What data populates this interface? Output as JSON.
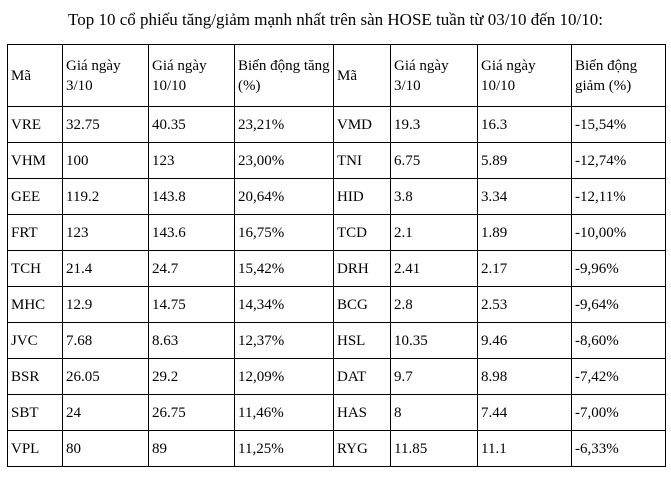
{
  "title": "Top 10 cổ phiếu tăng/giảm mạnh nhất trên sàn HOSE tuần từ 03/10 đến 10/10:",
  "table": {
    "headers": [
      "Mã",
      "Giá ngày 3/10",
      "Giá ngày 10/10",
      "Biến động tăng (%)",
      "Mã",
      "Giá ngày 3/10",
      "Giá ngày 10/10",
      "Biến động giảm (%)"
    ],
    "gainers": [
      {
        "ticker": "VRE",
        "price_0310": "32.75",
        "price_1010": "40.35",
        "change": "23,21%"
      },
      {
        "ticker": "VHM",
        "price_0310": "100",
        "price_1010": "123",
        "change": "23,00%"
      },
      {
        "ticker": "GEE",
        "price_0310": "119.2",
        "price_1010": "143.8",
        "change": "20,64%"
      },
      {
        "ticker": "FRT",
        "price_0310": "123",
        "price_1010": "143.6",
        "change": "16,75%"
      },
      {
        "ticker": "TCH",
        "price_0310": "21.4",
        "price_1010": "24.7",
        "change": "15,42%"
      },
      {
        "ticker": "MHC",
        "price_0310": "12.9",
        "price_1010": "14.75",
        "change": "14,34%"
      },
      {
        "ticker": "JVC",
        "price_0310": "7.68",
        "price_1010": "8.63",
        "change": "12,37%"
      },
      {
        "ticker": "BSR",
        "price_0310": "26.05",
        "price_1010": "29.2",
        "change": "12,09%"
      },
      {
        "ticker": "SBT",
        "price_0310": "24",
        "price_1010": "26.75",
        "change": "11,46%"
      },
      {
        "ticker": "VPL",
        "price_0310": "80",
        "price_1010": "89",
        "change": "11,25%"
      }
    ],
    "losers": [
      {
        "ticker": "VMD",
        "price_0310": "19.3",
        "price_1010": "16.3",
        "change": "-15,54%"
      },
      {
        "ticker": "TNI",
        "price_0310": "6.75",
        "price_1010": "5.89",
        "change": "-12,74%"
      },
      {
        "ticker": "HID",
        "price_0310": "3.8",
        "price_1010": "3.34",
        "change": "-12,11%"
      },
      {
        "ticker": "TCD",
        "price_0310": "2.1",
        "price_1010": "1.89",
        "change": "-10,00%"
      },
      {
        "ticker": "DRH",
        "price_0310": "2.41",
        "price_1010": "2.17",
        "change": "-9,96%"
      },
      {
        "ticker": "BCG",
        "price_0310": "2.8",
        "price_1010": "2.53",
        "change": "-9,64%"
      },
      {
        "ticker": "HSL",
        "price_0310": "10.35",
        "price_1010": "9.46",
        "change": "-8,60%"
      },
      {
        "ticker": "DAT",
        "price_0310": "9.7",
        "price_1010": "8.98",
        "change": "-7,42%"
      },
      {
        "ticker": "HAS",
        "price_0310": "8",
        "price_1010": "7.44",
        "change": "-7,00%"
      },
      {
        "ticker": "RYG",
        "price_0310": "11.85",
        "price_1010": "11.1",
        "change": "-6,33%"
      }
    ]
  }
}
